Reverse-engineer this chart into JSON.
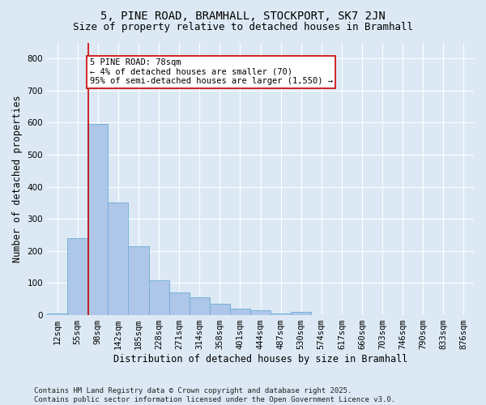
{
  "title1": "5, PINE ROAD, BRAMHALL, STOCKPORT, SK7 2JN",
  "title2": "Size of property relative to detached houses in Bramhall",
  "xlabel": "Distribution of detached houses by size in Bramhall",
  "ylabel": "Number of detached properties",
  "bin_labels": [
    "12sqm",
    "55sqm",
    "98sqm",
    "142sqm",
    "185sqm",
    "228sqm",
    "271sqm",
    "314sqm",
    "358sqm",
    "401sqm",
    "444sqm",
    "487sqm",
    "530sqm",
    "574sqm",
    "617sqm",
    "660sqm",
    "703sqm",
    "746sqm",
    "790sqm",
    "833sqm",
    "876sqm"
  ],
  "bar_values": [
    5,
    240,
    595,
    350,
    215,
    110,
    70,
    55,
    35,
    20,
    15,
    5,
    10,
    0,
    0,
    0,
    0,
    0,
    0,
    0,
    0
  ],
  "bar_color": "#aec6e8",
  "bar_edge_color": "#6aaed6",
  "background_color": "#dce9f5",
  "grid_color": "#ffffff",
  "vline_color": "#cc0000",
  "vline_x": 1.55,
  "annotation_text": "5 PINE ROAD: 78sqm\n← 4% of detached houses are smaller (70)\n95% of semi-detached houses are larger (1,550) →",
  "annotation_box_color": "#ffffff",
  "annotation_box_edge_color": "#cc0000",
  "ylim": [
    0,
    850
  ],
  "yticks": [
    0,
    100,
    200,
    300,
    400,
    500,
    600,
    700,
    800
  ],
  "footer_text": "Contains HM Land Registry data © Crown copyright and database right 2025.\nContains public sector information licensed under the Open Government Licence v3.0.",
  "title1_fontsize": 10,
  "title2_fontsize": 9,
  "xlabel_fontsize": 8.5,
  "ylabel_fontsize": 8.5,
  "tick_fontsize": 7.5,
  "annotation_fontsize": 7.5,
  "footer_fontsize": 6.5
}
